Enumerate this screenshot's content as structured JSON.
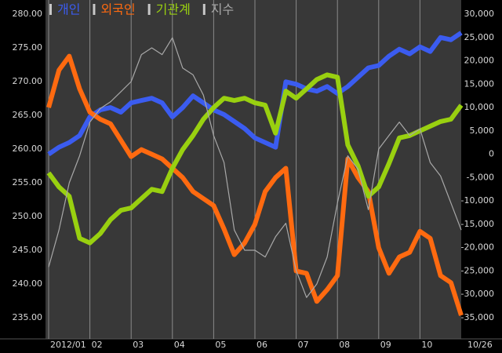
{
  "chart_data": {
    "type": "line",
    "categories": [
      "2012/01",
      null,
      null,
      null,
      "02",
      null,
      null,
      null,
      "03",
      null,
      null,
      null,
      "04",
      null,
      null,
      null,
      "05",
      null,
      null,
      null,
      "06",
      null,
      null,
      null,
      "07",
      null,
      null,
      null,
      "08",
      null,
      null,
      null,
      "09",
      null,
      null,
      null,
      "10",
      null,
      null,
      null,
      "10/26"
    ],
    "series": [
      {
        "name": "개인",
        "color": "#3b5cf0",
        "axis": "y2",
        "values": [
          0,
          1500,
          2500,
          4000,
          8000,
          9500,
          10000,
          9000,
          11000,
          11500,
          12000,
          11000,
          8000,
          10000,
          12500,
          11000,
          9500,
          8500,
          7000,
          5500,
          3500,
          2500,
          1500,
          15500,
          15000,
          14000,
          13500,
          14500,
          13000,
          14500,
          16500,
          18500,
          19000,
          21000,
          22500,
          21500,
          23000,
          22000,
          25000,
          24500,
          26000
        ]
      },
      {
        "name": "외국인",
        "color": "#ff6a10",
        "axis": "y2",
        "values": [
          10000,
          18000,
          21000,
          14000,
          9000,
          7500,
          6500,
          3000,
          -500,
          1000,
          0,
          -1000,
          -3000,
          -5000,
          -8000,
          -9500,
          -11000,
          -16000,
          -21500,
          -19000,
          -15000,
          -8000,
          -5000,
          -3000,
          -25000,
          -25500,
          -31500,
          -29000,
          -26000,
          -1000,
          -5000,
          -8000,
          -20000,
          -25500,
          -22000,
          -21000,
          -16500,
          -18000,
          -26000,
          -27500,
          -34500
        ]
      },
      {
        "name": "기관계",
        "color": "#99d010",
        "axis": "y2",
        "values": [
          -4000,
          -7000,
          -9000,
          -18000,
          -19000,
          -17000,
          -14000,
          -12000,
          -11500,
          -9500,
          -7500,
          -8000,
          -3000,
          1000,
          4000,
          7500,
          10000,
          12000,
          11500,
          12000,
          11000,
          10500,
          4500,
          13500,
          12000,
          14000,
          16000,
          17000,
          16500,
          2000,
          -2500,
          -9000,
          -7000,
          -2000,
          3500,
          4000,
          5000,
          6000,
          7000,
          7500,
          10500
        ]
      },
      {
        "name": "지수",
        "color": "#a8a8a8",
        "axis": "y",
        "values": [
          242.5,
          248,
          255,
          259,
          264,
          266,
          267,
          268.5,
          270,
          274,
          275,
          274,
          276.5,
          272,
          271,
          268,
          262,
          258,
          248,
          245,
          245,
          244,
          247,
          249,
          242,
          238,
          240,
          244,
          252,
          259,
          257,
          251,
          260,
          262,
          264,
          262,
          263,
          258,
          256,
          252,
          248
        ]
      }
    ],
    "ylim": [
      235,
      280
    ],
    "yticks": [
      {
        "value": 235,
        "label": "235.00"
      },
      {
        "value": 240,
        "label": "240.00"
      },
      {
        "value": 245,
        "label": "245.00"
      },
      {
        "value": 250,
        "label": "250.00"
      },
      {
        "value": 255,
        "label": "255.00"
      },
      {
        "value": 260,
        "label": "260.00"
      },
      {
        "value": 265,
        "label": "265.00"
      },
      {
        "value": 270,
        "label": "270.00"
      },
      {
        "value": 275,
        "label": "275.00"
      },
      {
        "value": 280,
        "label": "280.00"
      }
    ],
    "y2lim": [
      -35000,
      30000
    ],
    "y2ticks": [
      {
        "value": -35000,
        "label": "-35,000"
      },
      {
        "value": -30000,
        "label": "-30,000"
      },
      {
        "value": -25000,
        "label": "-25,000"
      },
      {
        "value": -20000,
        "label": "-20,000"
      },
      {
        "value": -15000,
        "label": "-15,000"
      },
      {
        "value": -10000,
        "label": "-10,000"
      },
      {
        "value": -5000,
        "label": "-5,000"
      },
      0,
      {
        "value": 5000,
        "label": "5,000"
      },
      {
        "value": 10000,
        "label": "10,000"
      },
      {
        "value": 15000,
        "label": "15,000"
      },
      {
        "value": 20000,
        "label": "20,000"
      },
      {
        "value": 25000,
        "label": "25,000"
      },
      {
        "value": 30000,
        "label": "30,000"
      }
    ],
    "grid": true
  }
}
